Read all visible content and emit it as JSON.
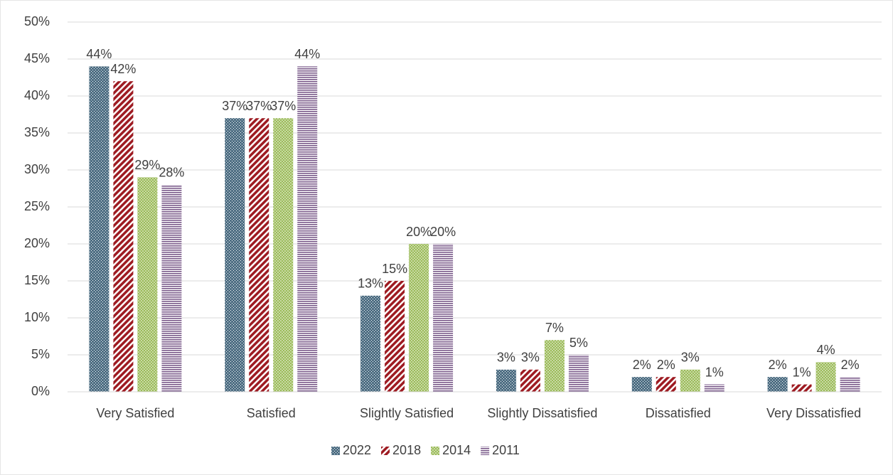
{
  "chart_data": {
    "type": "bar",
    "categories": [
      "Very Satisfied",
      "Satisfied",
      "Slightly Satisfied",
      "Slightly Dissatisfied",
      "Dissatisfied",
      "Very Dissatisfied"
    ],
    "series": [
      {
        "name": "2022",
        "color": "#4f6f84",
        "pattern": "checker",
        "values": [
          44,
          37,
          13,
          3,
          2,
          2
        ],
        "value_labels": [
          "44%",
          "37%",
          "13%",
          "3%",
          "2%",
          "2%"
        ]
      },
      {
        "name": "2018",
        "color": "#9e1b22",
        "pattern": "diagonal",
        "values": [
          42,
          37,
          15,
          3,
          2,
          1
        ],
        "value_labels": [
          "42%",
          "37%",
          "15%",
          "3%",
          "2%",
          "1%"
        ]
      },
      {
        "name": "2014",
        "color": "#9bbb59",
        "pattern": "dots",
        "values": [
          29,
          37,
          20,
          7,
          3,
          4
        ],
        "value_labels": [
          "29%",
          "37%",
          "20%",
          "7%",
          "3%",
          "4%"
        ]
      },
      {
        "name": "2011",
        "color": "#7a5a8a",
        "pattern": "horizontal",
        "values": [
          28,
          44,
          20,
          5,
          1,
          2
        ],
        "value_labels": [
          "28%",
          "44%",
          "20%",
          "5%",
          "1%",
          "2%"
        ]
      }
    ],
    "ylim": [
      0,
      50
    ],
    "yticks": [
      {
        "value": 0,
        "label": "0%"
      },
      {
        "value": 5,
        "label": "5%"
      },
      {
        "value": 10,
        "label": "10%"
      },
      {
        "value": 15,
        "label": "15%"
      },
      {
        "value": 20,
        "label": "20%"
      },
      {
        "value": 25,
        "label": "25%"
      },
      {
        "value": 30,
        "label": "30%"
      },
      {
        "value": 35,
        "label": "35%"
      },
      {
        "value": 40,
        "label": "40%"
      },
      {
        "value": 45,
        "label": "45%"
      },
      {
        "value": 50,
        "label": "50%"
      }
    ],
    "grid": true,
    "legend": "bottom"
  }
}
